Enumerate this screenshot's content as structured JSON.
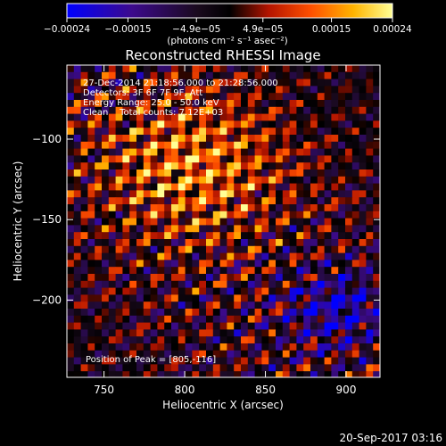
{
  "chart_data": {
    "type": "heatmap",
    "title": "Reconstructed RHESSI Image",
    "xlabel": "Heliocentric X (arcsec)",
    "ylabel": "Heliocentric Y (arcsec)",
    "xlim": [
      727,
      921
    ],
    "ylim": [
      -248,
      -54
    ],
    "x_ticks": [
      750,
      800,
      850,
      900
    ],
    "y_ticks": [
      -100,
      -150,
      -200
    ],
    "colorbar": {
      "min": -0.00024,
      "max": 0.00024,
      "ticks": [
        -0.00024,
        -0.00015,
        -4.9e-05,
        4.9e-05,
        0.00015,
        0.00024
      ],
      "tick_labels": [
        "−0.00024",
        "−0.00015",
        "−4.9e−05",
        "4.9e−05",
        "0.00015",
        "0.00024"
      ],
      "unit_label": "(photons cm⁻² s⁻¹ asec⁻²)"
    },
    "annotations": [
      "27-Dec-2014 21:18:56.000 to 21:28:56.000",
      "Detectors: 3F 6F 7F 9F, Att",
      "Energy Range: 25.0 - 50.0 keV",
      "Clean    Total counts: 7.12E+03"
    ],
    "peak_label": "Position of Peak = [805,-116]",
    "peak": [
      805,
      -116
    ],
    "footer_date": "20-Sep-2017 03:16",
    "colormap": [
      "#0000ff",
      "#3c0a8c",
      "#1a0a1e",
      "#000000",
      "#b41400",
      "#ff5000",
      "#ffb400",
      "#ffff96"
    ]
  }
}
